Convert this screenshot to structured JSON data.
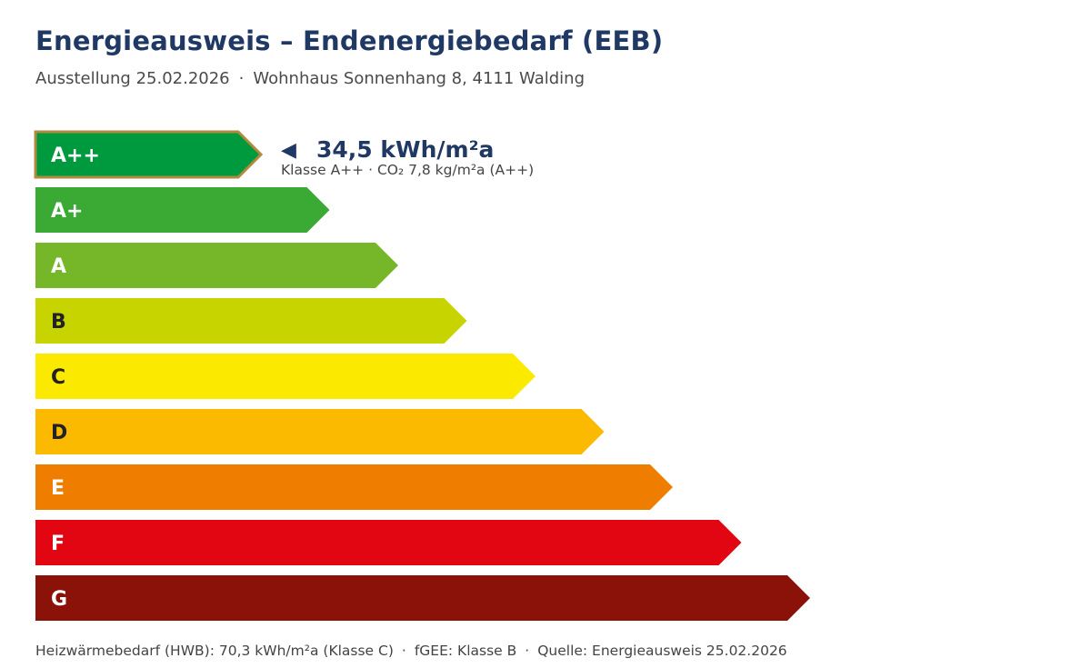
{
  "header": {
    "title": "Energieausweis – Endenergiebedarf (EEB)",
    "subtitle_date": "Ausstellung 25.02.2026",
    "subtitle_sep": "·",
    "subtitle_address": "Wohnhaus Sonnenhang 8, 4111 Walding"
  },
  "chart_data": {
    "type": "bar",
    "title": "Energieausweis – Endenergiebedarf (EEB)",
    "categories": [
      "A++",
      "A+",
      "A",
      "B",
      "C",
      "D",
      "E",
      "F",
      "G"
    ],
    "colors": [
      "#009a3e",
      "#3aaa35",
      "#76b72a",
      "#c8d400",
      "#fbea00",
      "#fbba00",
      "#ee7d00",
      "#e20613",
      "#8b1208"
    ],
    "label_colors": [
      "#ffffff",
      "#ffffff",
      "#ffffff",
      "#222222",
      "#222222",
      "#222222",
      "#ffffff",
      "#ffffff",
      "#ffffff"
    ],
    "highlight": {
      "class": "A++",
      "highlight_border_color": "#b08a3e",
      "arrow": "◀",
      "value_text": "34,5 kWh/m²a",
      "detail_class": "Klasse A++",
      "detail_sep": "·",
      "detail_co2": "CO₂ 7,8 kg/m²a (A++)"
    },
    "xlabel": "",
    "ylabel": ""
  },
  "footer": {
    "hwb": "Heizwärmebedarf (HWB): 70,3 kWh/m²a (Klasse C)",
    "fgee": "fGEE: Klasse B",
    "source": "Quelle: Energieausweis 25.02.2026",
    "sep": "·"
  },
  "colors": {
    "title": "#1f3864",
    "text": "#444444"
  }
}
